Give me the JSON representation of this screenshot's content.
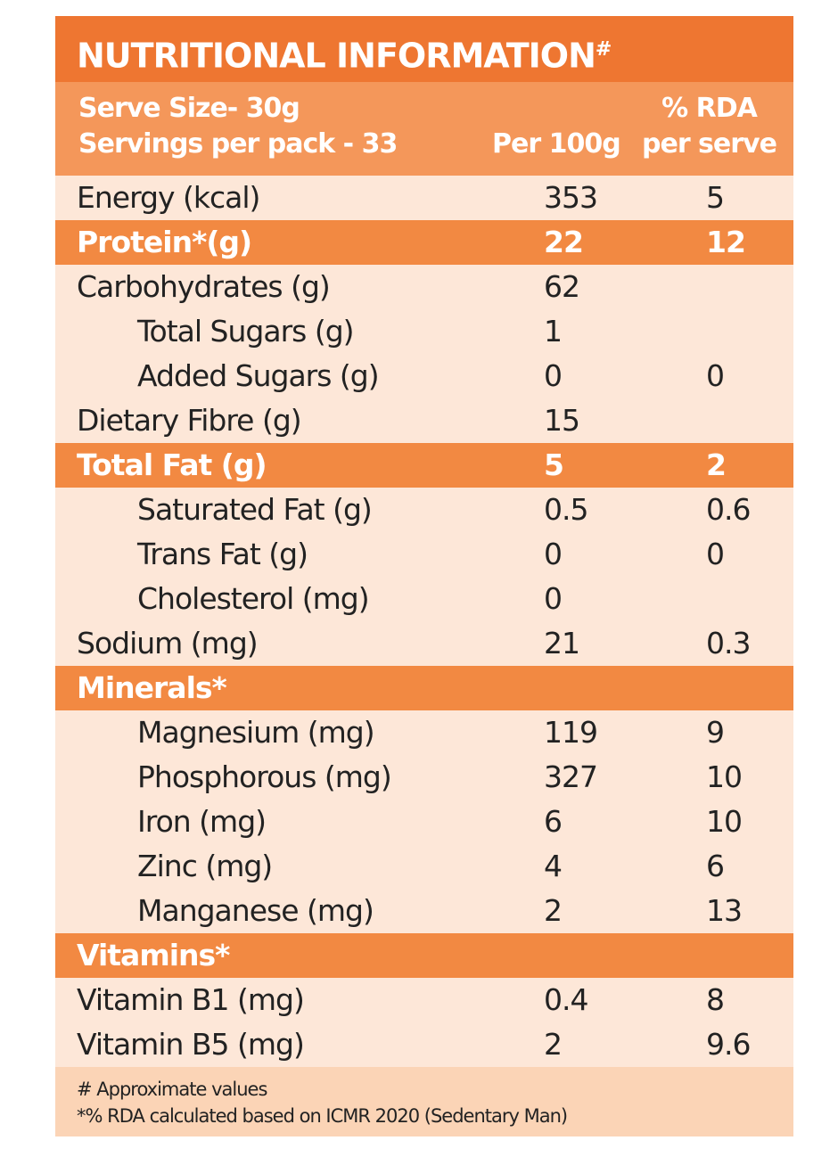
{
  "title": "NUTRITIONAL INFORMATION",
  "title_mark": "#",
  "header": {
    "serve_size": "Serve Size- 30g",
    "servings": "Servings per pack - 33",
    "per100": "Per 100g",
    "rda1": "% RDA",
    "rda2": "per serve"
  },
  "rows": [
    {
      "label": "Energy (kcal)",
      "per100": "353",
      "rda": "5",
      "hl": false,
      "ind": false
    },
    {
      "label": "Protein*(g)",
      "per100": "22",
      "rda": "12",
      "hl": true,
      "ind": false
    },
    {
      "label": "Carbohydrates (g)",
      "per100": "62",
      "rda": "",
      "hl": false,
      "ind": false
    },
    {
      "label": "Total Sugars (g)",
      "per100": "1",
      "rda": "",
      "hl": false,
      "ind": true
    },
    {
      "label": "Added Sugars (g)",
      "per100": "0",
      "rda": "0",
      "hl": false,
      "ind": true
    },
    {
      "label": "Dietary Fibre (g)",
      "per100": "15",
      "rda": "",
      "hl": false,
      "ind": false
    },
    {
      "label": "Total Fat (g)",
      "per100": "5",
      "rda": "2",
      "hl": true,
      "ind": false
    },
    {
      "label": "Saturated Fat (g)",
      "per100": "0.5",
      "rda": "0.6",
      "hl": false,
      "ind": true
    },
    {
      "label": "Trans Fat (g)",
      "per100": "0",
      "rda": "0",
      "hl": false,
      "ind": true
    },
    {
      "label": "Cholesterol (mg)",
      "per100": "0",
      "rda": "",
      "hl": false,
      "ind": true
    },
    {
      "label": "Sodium (mg)",
      "per100": "21",
      "rda": "0.3",
      "hl": false,
      "ind": false
    },
    {
      "label": "Minerals*",
      "per100": "",
      "rda": "",
      "hl": true,
      "ind": false
    },
    {
      "label": "Magnesium (mg)",
      "per100": "119",
      "rda": "9",
      "hl": false,
      "ind": true
    },
    {
      "label": "Phosphorous (mg)",
      "per100": "327",
      "rda": "10",
      "hl": false,
      "ind": true
    },
    {
      "label": "Iron (mg)",
      "per100": "6",
      "rda": "10",
      "hl": false,
      "ind": true
    },
    {
      "label": "Zinc (mg)",
      "per100": "4",
      "rda": "6",
      "hl": false,
      "ind": true
    },
    {
      "label": "Manganese (mg)",
      "per100": "2",
      "rda": "13",
      "hl": false,
      "ind": true
    },
    {
      "label": "Vitamins*",
      "per100": "",
      "rda": "",
      "hl": true,
      "ind": false
    },
    {
      "label": "Vitamin B1 (mg)",
      "per100": "0.4",
      "rda": "8",
      "hl": false,
      "ind": false
    },
    {
      "label": "Vitamin B5 (mg)",
      "per100": "2",
      "rda": "9.6",
      "hl": false,
      "ind": false
    }
  ],
  "footer": {
    "note1": "# Approximate values",
    "note2": "*% RDA calculated based on ICMR 2020 (Sedentary Man)"
  }
}
